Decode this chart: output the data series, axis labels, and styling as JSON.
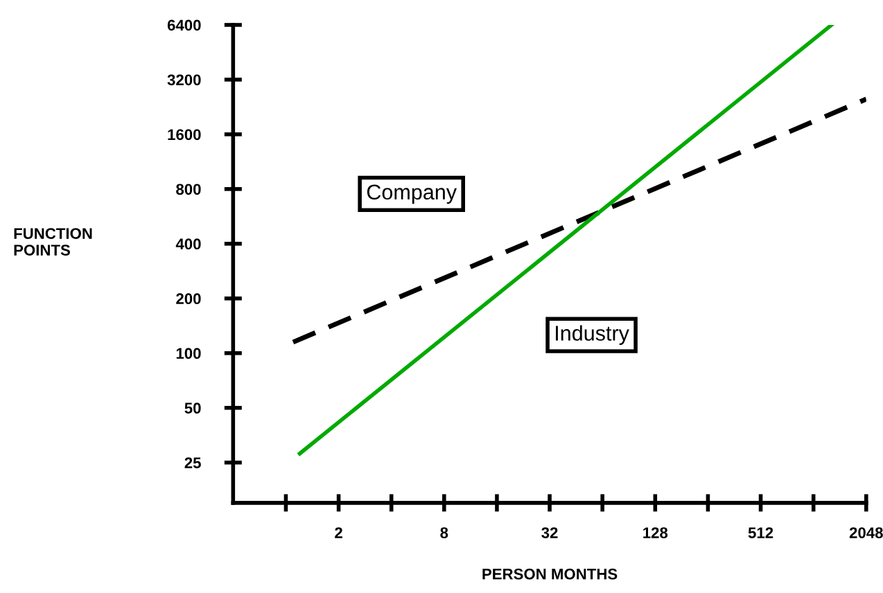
{
  "chart_data": {
    "type": "line",
    "xlabel": "PERSON MONTHS",
    "ylabel": "FUNCTION\nPOINTS",
    "log": "xy",
    "xlim": [
      0.5,
      2048
    ],
    "ylim": [
      15,
      6400
    ],
    "xticks": [
      {
        "value": 1,
        "label": null
      },
      2,
      {
        "value": 4,
        "label": null
      },
      8,
      {
        "value": 16,
        "label": null
      },
      32,
      {
        "value": 64,
        "label": null
      },
      128,
      {
        "value": 256,
        "label": null
      },
      512,
      {
        "value": 1024,
        "label": null
      },
      2048
    ],
    "yticks": [
      25,
      50,
      100,
      200,
      400,
      800,
      1600,
      3200,
      6400
    ],
    "grid": false,
    "legend": false,
    "series": [
      {
        "name": "Company",
        "color": "#000000",
        "line_style": "dashed",
        "x": [
          1.1,
          2048
        ],
        "values": [
          115,
          2500
        ]
      },
      {
        "name": "Industry",
        "color": "#00aa00",
        "line_style": "solid",
        "x": [
          1.2,
          1300
        ],
        "values": [
          28,
          6400
        ]
      }
    ]
  }
}
